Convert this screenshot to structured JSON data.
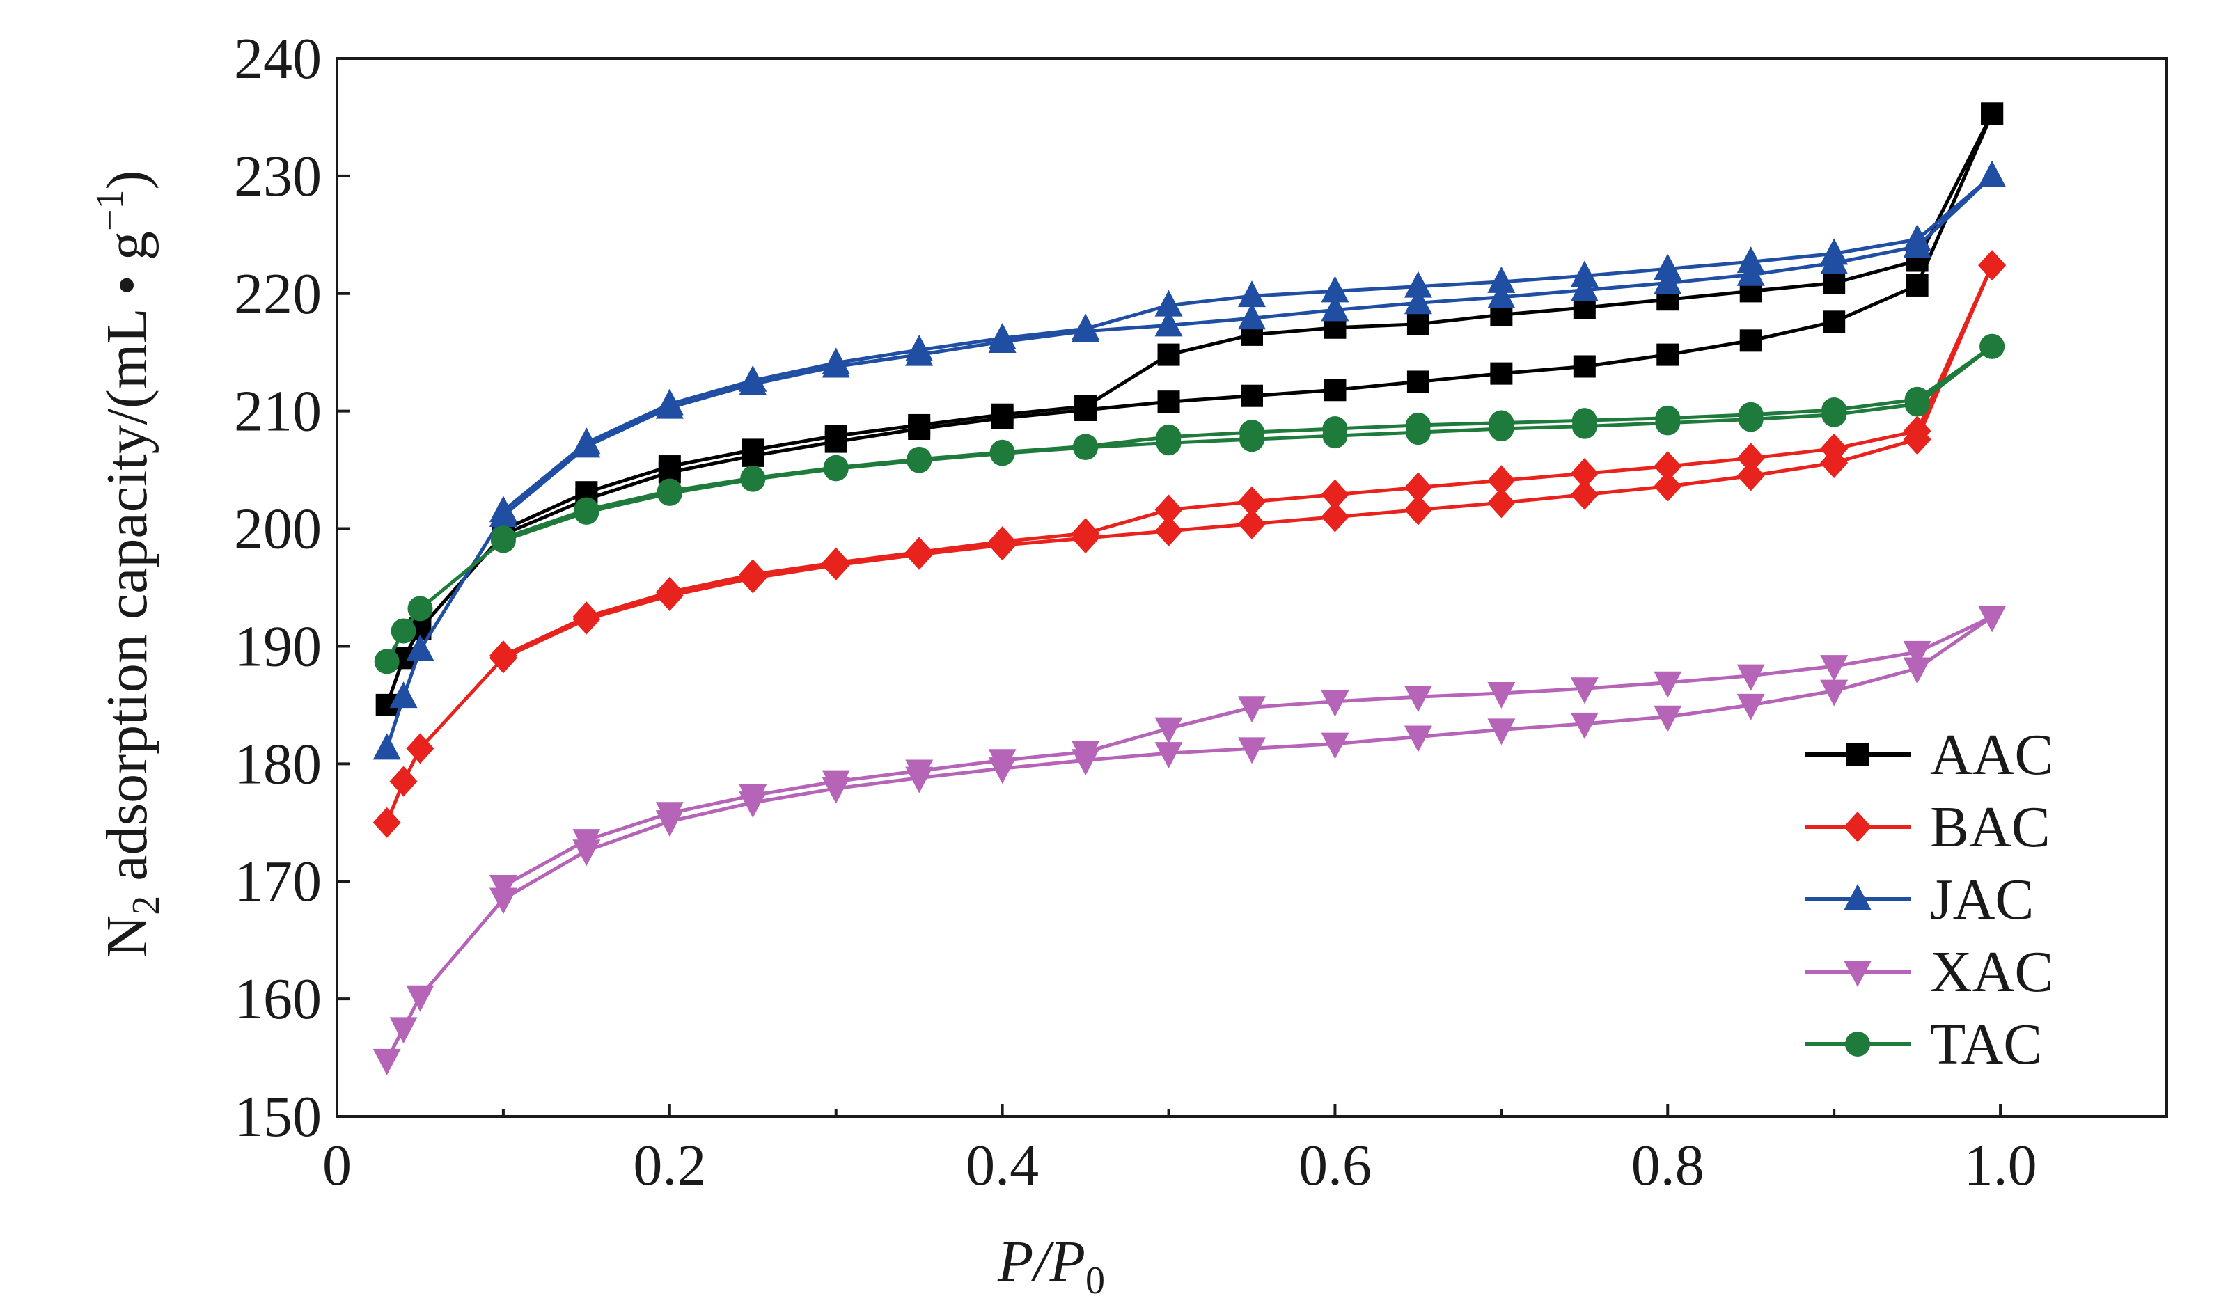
{
  "chart_data": {
    "type": "line",
    "title": "",
    "xlabel": {
      "main": "P/P",
      "sub": "0"
    },
    "ylabel": {
      "pre": "N",
      "pre_sub": "2",
      "main": " adsorption capacity/(mL • g",
      "sup": "−1",
      "post": ")"
    },
    "xlim": [
      0,
      1.1
    ],
    "ylim": [
      150,
      240
    ],
    "xticks": [
      0,
      0.2,
      0.4,
      0.6,
      0.8,
      1.0
    ],
    "xtick_labels": [
      "0",
      "0.2",
      "0.4",
      "0.6",
      "0.8",
      "1.0"
    ],
    "yticks": [
      150,
      160,
      170,
      180,
      190,
      200,
      210,
      220,
      230,
      240
    ],
    "ytick_labels": [
      "150",
      "160",
      "170",
      "180",
      "190",
      "200",
      "210",
      "220",
      "230",
      "240"
    ],
    "grid": false,
    "legend_position": "bottom-right",
    "series": [
      {
        "name": "AAC",
        "color": "#000000",
        "marker": "square",
        "adsorption": {
          "x": [
            0.03,
            0.04,
            0.05,
            0.1,
            0.15,
            0.2,
            0.25,
            0.3,
            0.35,
            0.4,
            0.45,
            0.5,
            0.55,
            0.6,
            0.65,
            0.7,
            0.75,
            0.8,
            0.85,
            0.9,
            0.95,
            0.995
          ],
          "y": [
            185,
            189,
            191.5,
            199.5,
            202.5,
            204.8,
            206.2,
            207.4,
            208.5,
            209.4,
            210.1,
            210.8,
            211.3,
            211.8,
            212.5,
            213.2,
            213.8,
            214.8,
            216,
            217.6,
            220.7,
            235.3
          ]
        },
        "desorption": {
          "x": [
            0.995,
            0.95,
            0.9,
            0.85,
            0.8,
            0.75,
            0.7,
            0.65,
            0.6,
            0.55,
            0.5,
            0.45,
            0.4,
            0.35,
            0.3,
            0.25,
            0.2,
            0.15,
            0.1
          ],
          "y": [
            235.3,
            222.8,
            220.9,
            220.2,
            219.5,
            218.8,
            218.2,
            217.4,
            217.1,
            216.5,
            214.8,
            210.4,
            209.7,
            208.8,
            207.9,
            206.7,
            205.3,
            203.1,
            199.9
          ]
        }
      },
      {
        "name": "BAC",
        "color": "#e8221c",
        "marker": "diamond",
        "adsorption": {
          "x": [
            0.03,
            0.04,
            0.05,
            0.1,
            0.15,
            0.2,
            0.25,
            0.3,
            0.35,
            0.4,
            0.45,
            0.5,
            0.55,
            0.6,
            0.65,
            0.7,
            0.75,
            0.8,
            0.85,
            0.9,
            0.95,
            0.995
          ],
          "y": [
            175,
            178.5,
            181.3,
            189,
            192.3,
            194.3,
            195.8,
            196.9,
            197.8,
            198.6,
            199.2,
            199.8,
            200.4,
            201,
            201.6,
            202.2,
            202.9,
            203.6,
            204.5,
            205.6,
            207.6,
            222.4
          ]
        },
        "desorption": {
          "x": [
            0.995,
            0.95,
            0.9,
            0.85,
            0.8,
            0.75,
            0.7,
            0.65,
            0.6,
            0.55,
            0.5,
            0.45,
            0.4,
            0.35,
            0.3,
            0.25,
            0.2,
            0.15,
            0.1
          ],
          "y": [
            222.4,
            208.3,
            206.8,
            206,
            205.3,
            204.7,
            204.1,
            203.5,
            202.9,
            202.3,
            201.6,
            199.6,
            198.9,
            198,
            197.1,
            196.1,
            194.6,
            192.5,
            189.2
          ]
        }
      },
      {
        "name": "JAC",
        "color": "#1f4ea3",
        "marker": "triangle-up",
        "adsorption": {
          "x": [
            0.03,
            0.04,
            0.05,
            0.1,
            0.15,
            0.2,
            0.25,
            0.3,
            0.35,
            0.4,
            0.45,
            0.5,
            0.55,
            0.6,
            0.65,
            0.7,
            0.75,
            0.8,
            0.85,
            0.9,
            0.95,
            0.995
          ],
          "y": [
            181.3,
            185.7,
            189.7,
            201.1,
            207,
            210.3,
            212.3,
            213.8,
            214.8,
            215.9,
            216.8,
            217.3,
            217.9,
            218.6,
            219.2,
            219.7,
            220.3,
            220.9,
            221.6,
            222.6,
            224,
            230
          ]
        },
        "desorption": {
          "x": [
            0.995,
            0.95,
            0.9,
            0.85,
            0.8,
            0.75,
            0.7,
            0.65,
            0.6,
            0.55,
            0.5,
            0.45,
            0.4,
            0.35,
            0.3,
            0.25,
            0.2,
            0.15,
            0.1
          ],
          "y": [
            230,
            224.6,
            223.4,
            222.7,
            222.1,
            221.5,
            221,
            220.6,
            220.2,
            219.8,
            219,
            217,
            216.2,
            215.2,
            214.1,
            212.6,
            210.6,
            207.3,
            201.5
          ]
        }
      },
      {
        "name": "XAC",
        "color": "#b564b8",
        "marker": "triangle-down",
        "adsorption": {
          "x": [
            0.03,
            0.04,
            0.05,
            0.1,
            0.15,
            0.2,
            0.25,
            0.3,
            0.35,
            0.4,
            0.45,
            0.5,
            0.55,
            0.6,
            0.65,
            0.7,
            0.75,
            0.8,
            0.85,
            0.9,
            0.95,
            0.995
          ],
          "y": [
            154.8,
            157.5,
            160.2,
            168.5,
            172.6,
            175.1,
            176.7,
            177.9,
            178.8,
            179.6,
            180.3,
            180.9,
            181.3,
            181.7,
            182.3,
            182.9,
            183.4,
            184,
            185,
            186.2,
            188.1,
            192.5
          ]
        },
        "desorption": {
          "x": [
            0.995,
            0.95,
            0.9,
            0.85,
            0.8,
            0.75,
            0.7,
            0.65,
            0.6,
            0.55,
            0.5,
            0.45,
            0.4,
            0.35,
            0.3,
            0.25,
            0.2,
            0.15,
            0.1
          ],
          "y": [
            192.5,
            189.5,
            188.3,
            187.5,
            186.9,
            186.4,
            186,
            185.7,
            185.3,
            184.8,
            183,
            181,
            180.3,
            179.4,
            178.5,
            177.3,
            175.8,
            173.5,
            169.6
          ]
        }
      },
      {
        "name": "TAC",
        "color": "#1e7b3c",
        "marker": "circle",
        "adsorption": {
          "x": [
            0.03,
            0.04,
            0.05,
            0.1,
            0.15,
            0.2,
            0.25,
            0.3,
            0.35,
            0.4,
            0.45,
            0.5,
            0.55,
            0.6,
            0.65,
            0.7,
            0.75,
            0.8,
            0.85,
            0.9,
            0.95,
            0.995
          ],
          "y": [
            188.7,
            191.3,
            193.2,
            199,
            201.4,
            203,
            204.2,
            205.1,
            205.8,
            206.4,
            206.9,
            207.3,
            207.6,
            207.9,
            208.2,
            208.5,
            208.7,
            209,
            209.3,
            209.7,
            210.6,
            215.5
          ]
        },
        "desorption": {
          "x": [
            0.995,
            0.95,
            0.9,
            0.85,
            0.8,
            0.75,
            0.7,
            0.65,
            0.6,
            0.55,
            0.5,
            0.45,
            0.4,
            0.35,
            0.3,
            0.25,
            0.2,
            0.15,
            0.1
          ],
          "y": [
            215.5,
            211,
            210.1,
            209.7,
            209.4,
            209.2,
            209,
            208.8,
            208.5,
            208.2,
            207.8,
            207,
            206.5,
            205.9,
            205.2,
            204.3,
            203.2,
            201.6,
            199.2
          ]
        }
      }
    ]
  }
}
